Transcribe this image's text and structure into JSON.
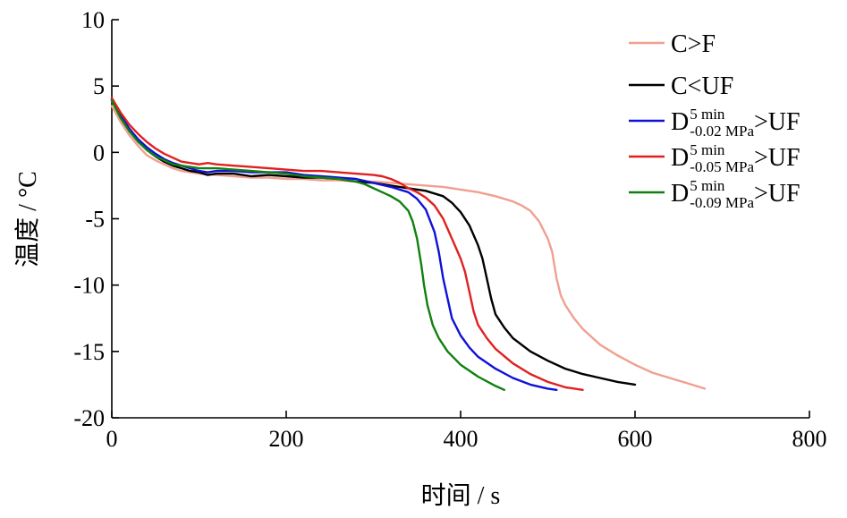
{
  "chart_data": {
    "type": "line",
    "title": "",
    "xlabel": "时间 / s",
    "ylabel": "温度 / °C",
    "xlim": [
      0,
      800
    ],
    "ylim": [
      -20,
      10
    ],
    "xticks": [
      0,
      200,
      400,
      600,
      800
    ],
    "yticks": [
      10,
      5,
      0,
      -5,
      -10,
      -15,
      -20
    ],
    "grid": false,
    "legend_position": "top-right",
    "series": [
      {
        "label_parts": {
          "main": "C>F",
          "sup": "",
          "sub": "",
          "suffix": ""
        },
        "color": "#f0a090",
        "points": [
          [
            0,
            3.5
          ],
          [
            10,
            2.3
          ],
          [
            20,
            1.3
          ],
          [
            30,
            0.5
          ],
          [
            40,
            -0.2
          ],
          [
            50,
            -0.6
          ],
          [
            60,
            -0.9
          ],
          [
            70,
            -1.2
          ],
          [
            80,
            -1.4
          ],
          [
            90,
            -1.5
          ],
          [
            100,
            -1.6
          ],
          [
            120,
            -1.7
          ],
          [
            140,
            -1.8
          ],
          [
            160,
            -1.9
          ],
          [
            180,
            -1.9
          ],
          [
            200,
            -2.0
          ],
          [
            220,
            -2.0
          ],
          [
            240,
            -2.1
          ],
          [
            260,
            -2.1
          ],
          [
            280,
            -2.2
          ],
          [
            300,
            -2.2
          ],
          [
            320,
            -2.3
          ],
          [
            340,
            -2.4
          ],
          [
            360,
            -2.5
          ],
          [
            380,
            -2.6
          ],
          [
            400,
            -2.8
          ],
          [
            420,
            -3.0
          ],
          [
            440,
            -3.3
          ],
          [
            460,
            -3.7
          ],
          [
            470,
            -4.0
          ],
          [
            480,
            -4.4
          ],
          [
            490,
            -5.2
          ],
          [
            500,
            -6.5
          ],
          [
            505,
            -7.5
          ],
          [
            510,
            -9.5
          ],
          [
            515,
            -10.8
          ],
          [
            520,
            -11.5
          ],
          [
            530,
            -12.5
          ],
          [
            540,
            -13.3
          ],
          [
            560,
            -14.5
          ],
          [
            580,
            -15.3
          ],
          [
            600,
            -16.0
          ],
          [
            620,
            -16.6
          ],
          [
            640,
            -17.0
          ],
          [
            660,
            -17.4
          ],
          [
            680,
            -17.8
          ]
        ]
      },
      {
        "label_parts": {
          "main": "C<UF",
          "sup": "",
          "sub": "",
          "suffix": ""
        },
        "color": "#000000",
        "points": [
          [
            0,
            4.0
          ],
          [
            10,
            2.7
          ],
          [
            20,
            1.7
          ],
          [
            30,
            0.9
          ],
          [
            40,
            0.2
          ],
          [
            50,
            -0.3
          ],
          [
            60,
            -0.7
          ],
          [
            70,
            -1.0
          ],
          [
            80,
            -1.2
          ],
          [
            90,
            -1.4
          ],
          [
            100,
            -1.5
          ],
          [
            110,
            -1.7
          ],
          [
            120,
            -1.6
          ],
          [
            140,
            -1.6
          ],
          [
            160,
            -1.8
          ],
          [
            180,
            -1.7
          ],
          [
            200,
            -1.8
          ],
          [
            220,
            -1.9
          ],
          [
            240,
            -1.9
          ],
          [
            260,
            -2.0
          ],
          [
            280,
            -2.2
          ],
          [
            300,
            -2.3
          ],
          [
            320,
            -2.5
          ],
          [
            340,
            -2.7
          ],
          [
            360,
            -2.9
          ],
          [
            380,
            -3.3
          ],
          [
            390,
            -3.8
          ],
          [
            400,
            -4.5
          ],
          [
            410,
            -5.5
          ],
          [
            420,
            -7.0
          ],
          [
            425,
            -8.0
          ],
          [
            430,
            -9.5
          ],
          [
            435,
            -11.0
          ],
          [
            440,
            -12.2
          ],
          [
            450,
            -13.2
          ],
          [
            460,
            -14.0
          ],
          [
            480,
            -15.0
          ],
          [
            500,
            -15.7
          ],
          [
            520,
            -16.3
          ],
          [
            540,
            -16.7
          ],
          [
            560,
            -17.0
          ],
          [
            580,
            -17.3
          ],
          [
            600,
            -17.5
          ]
        ]
      },
      {
        "label_parts": {
          "main": "D",
          "sup": "5 min",
          "sub": "-0.02 MPa",
          "suffix": ">UF"
        },
        "color": "#1010d8",
        "points": [
          [
            0,
            4.0
          ],
          [
            10,
            2.8
          ],
          [
            20,
            1.8
          ],
          [
            30,
            1.0
          ],
          [
            40,
            0.4
          ],
          [
            50,
            -0.1
          ],
          [
            60,
            -0.5
          ],
          [
            70,
            -0.8
          ],
          [
            80,
            -1.0
          ],
          [
            90,
            -1.2
          ],
          [
            100,
            -1.4
          ],
          [
            110,
            -1.5
          ],
          [
            120,
            -1.4
          ],
          [
            140,
            -1.4
          ],
          [
            160,
            -1.5
          ],
          [
            180,
            -1.5
          ],
          [
            200,
            -1.5
          ],
          [
            220,
            -1.7
          ],
          [
            240,
            -1.8
          ],
          [
            260,
            -1.9
          ],
          [
            280,
            -2.0
          ],
          [
            300,
            -2.3
          ],
          [
            320,
            -2.6
          ],
          [
            340,
            -3.0
          ],
          [
            350,
            -3.5
          ],
          [
            360,
            -4.3
          ],
          [
            370,
            -6.0
          ],
          [
            375,
            -7.5
          ],
          [
            380,
            -9.5
          ],
          [
            385,
            -11.0
          ],
          [
            390,
            -12.5
          ],
          [
            400,
            -13.8
          ],
          [
            410,
            -14.7
          ],
          [
            420,
            -15.4
          ],
          [
            440,
            -16.3
          ],
          [
            460,
            -17.0
          ],
          [
            480,
            -17.5
          ],
          [
            500,
            -17.8
          ],
          [
            510,
            -17.9
          ]
        ]
      },
      {
        "label_parts": {
          "main": "D",
          "sup": "5 min",
          "sub": "-0.05 MPa",
          "suffix": ">UF"
        },
        "color": "#e02020",
        "points": [
          [
            0,
            4.1
          ],
          [
            10,
            3.0
          ],
          [
            20,
            2.1
          ],
          [
            30,
            1.4
          ],
          [
            40,
            0.8
          ],
          [
            50,
            0.3
          ],
          [
            60,
            -0.1
          ],
          [
            70,
            -0.4
          ],
          [
            80,
            -0.7
          ],
          [
            90,
            -0.8
          ],
          [
            100,
            -0.9
          ],
          [
            110,
            -0.8
          ],
          [
            120,
            -0.9
          ],
          [
            140,
            -1.0
          ],
          [
            160,
            -1.1
          ],
          [
            180,
            -1.2
          ],
          [
            200,
            -1.3
          ],
          [
            220,
            -1.4
          ],
          [
            240,
            -1.4
          ],
          [
            260,
            -1.5
          ],
          [
            280,
            -1.6
          ],
          [
            300,
            -1.7
          ],
          [
            310,
            -1.8
          ],
          [
            320,
            -2.0
          ],
          [
            330,
            -2.3
          ],
          [
            340,
            -2.7
          ],
          [
            350,
            -3.0
          ],
          [
            360,
            -3.4
          ],
          [
            370,
            -4.0
          ],
          [
            380,
            -5.0
          ],
          [
            390,
            -6.5
          ],
          [
            400,
            -8.0
          ],
          [
            405,
            -9.0
          ],
          [
            410,
            -10.5
          ],
          [
            415,
            -12.0
          ],
          [
            420,
            -13.0
          ],
          [
            430,
            -14.0
          ],
          [
            440,
            -14.8
          ],
          [
            460,
            -15.9
          ],
          [
            480,
            -16.7
          ],
          [
            500,
            -17.3
          ],
          [
            520,
            -17.7
          ],
          [
            540,
            -17.9
          ]
        ]
      },
      {
        "label_parts": {
          "main": "D",
          "sup": "5 min",
          "sub": "-0.09 MPa",
          "suffix": ">UF"
        },
        "color": "#108010",
        "points": [
          [
            0,
            3.9
          ],
          [
            10,
            2.6
          ],
          [
            20,
            1.6
          ],
          [
            30,
            0.8
          ],
          [
            40,
            0.2
          ],
          [
            50,
            -0.3
          ],
          [
            60,
            -0.6
          ],
          [
            70,
            -0.9
          ],
          [
            80,
            -1.0
          ],
          [
            90,
            -1.1
          ],
          [
            100,
            -1.2
          ],
          [
            110,
            -1.2
          ],
          [
            120,
            -1.2
          ],
          [
            140,
            -1.3
          ],
          [
            160,
            -1.4
          ],
          [
            180,
            -1.5
          ],
          [
            200,
            -1.6
          ],
          [
            220,
            -1.8
          ],
          [
            240,
            -1.9
          ],
          [
            260,
            -2.0
          ],
          [
            280,
            -2.2
          ],
          [
            290,
            -2.4
          ],
          [
            300,
            -2.7
          ],
          [
            310,
            -3.0
          ],
          [
            320,
            -3.3
          ],
          [
            330,
            -3.7
          ],
          [
            340,
            -4.4
          ],
          [
            345,
            -5.2
          ],
          [
            350,
            -6.5
          ],
          [
            355,
            -8.5
          ],
          [
            358,
            -10.0
          ],
          [
            362,
            -11.5
          ],
          [
            368,
            -13.0
          ],
          [
            375,
            -14.0
          ],
          [
            385,
            -15.0
          ],
          [
            400,
            -16.0
          ],
          [
            420,
            -16.9
          ],
          [
            440,
            -17.6
          ],
          [
            450,
            -17.9
          ]
        ]
      }
    ]
  }
}
